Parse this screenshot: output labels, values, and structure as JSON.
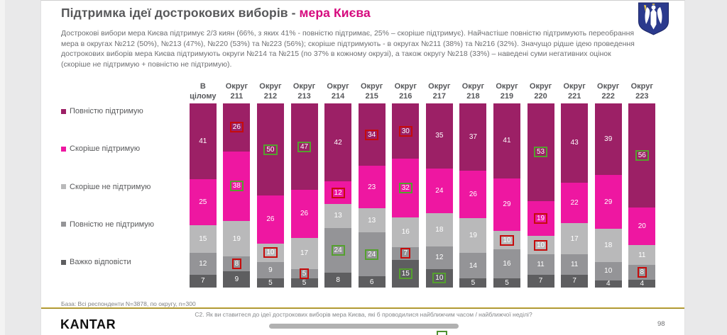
{
  "header": {
    "title_main": "Підтримка ідеї дострокових виборів - ",
    "title_accent": "мера Києва",
    "paragraph": "Дострокові вибори мера Києва підтримує 2/3 киян (66%, з яких 41% - повністю підтримає, 25% – скоріше підтримує). Найчастіше повністю підтримують переобрання мера в округах №212 (50%), №213 (47%), №220 (53%) та №223 (56%); скоріше підтримують - в округах №211 (38%) та №216 (32%). Значущо рідше ідею проведення дострокових виборів мера Києва підтримують округи №214 та №215 (по 37% в кожному окрузі), а також округу №218 (33%) – наведені суми негативних оцінок (скоріше не підтримую + повністю не підтримую)."
  },
  "colors": {
    "title_accent": "#d60a7e",
    "flag_green": "#55a02f",
    "flag_red": "#c60b0b"
  },
  "chart_data": {
    "type": "bar",
    "stacked": true,
    "orientation": "vertical",
    "unit": "percent",
    "ylim": [
      0,
      100
    ],
    "legend_position": "left",
    "series": [
      {
        "name": "Повністю підтримую",
        "color": "#9c2066"
      },
      {
        "name": "Скоріше підтримую",
        "color": "#ee17a1"
      },
      {
        "name": "Скоріше не підтримую",
        "color": "#b9b9ba"
      },
      {
        "name": "Повністю не підтримую",
        "color": "#949497"
      },
      {
        "name": "Важко відповісти",
        "color": "#5e5e60"
      }
    ],
    "columns": [
      {
        "category": "В цілому",
        "label_lines": [
          "В",
          "цілому"
        ],
        "values": [
          41,
          25,
          15,
          12,
          7
        ],
        "boxes": [
          null,
          null,
          null,
          null,
          null
        ]
      },
      {
        "category": "Округ 211",
        "label_lines": [
          "Округ",
          "211"
        ],
        "values": [
          26,
          38,
          19,
          8,
          9
        ],
        "boxes": [
          "red",
          "green",
          null,
          "red",
          null
        ]
      },
      {
        "category": "Округ 212",
        "label_lines": [
          "Округ",
          "212"
        ],
        "values": [
          50,
          26,
          10,
          9,
          5
        ],
        "boxes": [
          "green",
          null,
          "red",
          null,
          null
        ]
      },
      {
        "category": "Округ 213",
        "label_lines": [
          "Округ",
          "213"
        ],
        "values": [
          47,
          26,
          17,
          5,
          5
        ],
        "boxes": [
          "green",
          null,
          null,
          "red",
          null
        ]
      },
      {
        "category": "Округ 214",
        "label_lines": [
          "Округ",
          "214"
        ],
        "values": [
          42,
          12,
          13,
          24,
          8
        ],
        "boxes": [
          null,
          "red",
          null,
          "green",
          null
        ]
      },
      {
        "category": "Округ 215",
        "label_lines": [
          "Округ",
          "215"
        ],
        "values": [
          34,
          23,
          13,
          24,
          6
        ],
        "boxes": [
          "red",
          null,
          null,
          "green",
          null
        ]
      },
      {
        "category": "Округ 216",
        "label_lines": [
          "Округ",
          "216"
        ],
        "values": [
          30,
          32,
          16,
          7,
          15
        ],
        "boxes": [
          "red",
          "green",
          null,
          "red",
          "green"
        ]
      },
      {
        "category": "Округ 217",
        "label_lines": [
          "Округ",
          "217"
        ],
        "values": [
          35,
          24,
          18,
          12,
          10
        ],
        "boxes": [
          null,
          null,
          null,
          null,
          "green"
        ]
      },
      {
        "category": "Округ 218",
        "label_lines": [
          "Округ",
          "218"
        ],
        "values": [
          37,
          26,
          19,
          14,
          5
        ],
        "boxes": [
          null,
          null,
          null,
          null,
          null
        ]
      },
      {
        "category": "Округ 219",
        "label_lines": [
          "Округ",
          "219"
        ],
        "values": [
          41,
          29,
          10,
          16,
          5
        ],
        "boxes": [
          null,
          null,
          "red",
          null,
          null
        ]
      },
      {
        "category": "Округ 220",
        "label_lines": [
          "Округ",
          "220"
        ],
        "values": [
          53,
          19,
          10,
          11,
          7
        ],
        "boxes": [
          "green",
          "red",
          "red",
          null,
          null
        ]
      },
      {
        "category": "Округ 221",
        "label_lines": [
          "Округ",
          "221"
        ],
        "values": [
          43,
          22,
          17,
          11,
          7
        ],
        "boxes": [
          null,
          null,
          null,
          null,
          null
        ]
      },
      {
        "category": "Округ 222",
        "label_lines": [
          "Округ",
          "222"
        ],
        "values": [
          39,
          29,
          18,
          10,
          4
        ],
        "boxes": [
          null,
          null,
          null,
          null,
          null
        ]
      },
      {
        "category": "Округ 223",
        "label_lines": [
          "Округ",
          "223"
        ],
        "values": [
          56,
          20,
          11,
          8,
          4
        ],
        "boxes": [
          "green",
          null,
          null,
          "red",
          null
        ]
      }
    ]
  },
  "footer": {
    "base_note": "База: Всі респонденти N=3878, по округу, n=300",
    "question": "С2. Як ви ставитеся до ідеї дострокових виборів мера Києва, які б проводилися найближчим часом / найближчої неділі?",
    "page_number": "98",
    "brand": "KANTAR"
  }
}
